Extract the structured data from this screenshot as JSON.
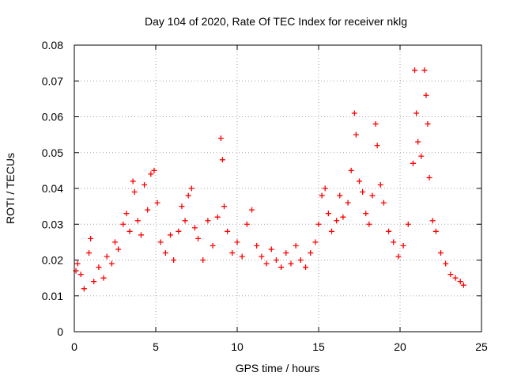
{
  "chart_data": {
    "type": "scatter",
    "title": "Day 104 of 2020, Rate Of TEC Index for receiver nklg",
    "xlabel": "GPS time / hours",
    "ylabel": "ROTI / TECUs",
    "xlim": [
      0,
      25
    ],
    "ylim": [
      0,
      0.08
    ],
    "xticks": [
      0,
      5,
      10,
      15,
      20,
      25
    ],
    "xtick_labels": [
      "0",
      "5",
      "10",
      "15",
      "20",
      "25"
    ],
    "yticks": [
      0,
      0.01,
      0.02,
      0.03,
      0.04,
      0.05,
      0.06,
      0.07,
      0.08
    ],
    "ytick_labels": [
      "0",
      "0.01",
      "0.02",
      "0.03",
      "0.04",
      "0.05",
      "0.06",
      "0.07",
      "0.08"
    ],
    "grid": true,
    "marker": "+",
    "color": "#ff0000",
    "series": [
      {
        "points": [
          [
            0.1,
            0.017
          ],
          [
            0.2,
            0.019
          ],
          [
            0.4,
            0.016
          ],
          [
            0.6,
            0.012
          ],
          [
            0.9,
            0.022
          ],
          [
            1.0,
            0.026
          ],
          [
            1.2,
            0.014
          ],
          [
            1.5,
            0.018
          ],
          [
            1.8,
            0.015
          ],
          [
            2.0,
            0.021
          ],
          [
            2.3,
            0.019
          ],
          [
            2.5,
            0.025
          ],
          [
            2.7,
            0.023
          ],
          [
            3.0,
            0.03
          ],
          [
            3.2,
            0.033
          ],
          [
            3.4,
            0.028
          ],
          [
            3.6,
            0.042
          ],
          [
            3.7,
            0.039
          ],
          [
            3.9,
            0.031
          ],
          [
            4.1,
            0.027
          ],
          [
            4.3,
            0.041
          ],
          [
            4.5,
            0.034
          ],
          [
            4.7,
            0.044
          ],
          [
            4.9,
            0.045
          ],
          [
            5.1,
            0.036
          ],
          [
            5.3,
            0.025
          ],
          [
            5.6,
            0.022
          ],
          [
            5.9,
            0.027
          ],
          [
            6.1,
            0.02
          ],
          [
            6.4,
            0.028
          ],
          [
            6.6,
            0.035
          ],
          [
            6.8,
            0.031
          ],
          [
            7.0,
            0.038
          ],
          [
            7.2,
            0.04
          ],
          [
            7.4,
            0.029
          ],
          [
            7.6,
            0.026
          ],
          [
            7.9,
            0.02
          ],
          [
            8.2,
            0.031
          ],
          [
            8.5,
            0.024
          ],
          [
            8.8,
            0.032
          ],
          [
            9.0,
            0.054
          ],
          [
            9.1,
            0.048
          ],
          [
            9.2,
            0.035
          ],
          [
            9.4,
            0.028
          ],
          [
            9.7,
            0.022
          ],
          [
            10.0,
            0.025
          ],
          [
            10.3,
            0.021
          ],
          [
            10.6,
            0.03
          ],
          [
            10.9,
            0.034
          ],
          [
            11.2,
            0.024
          ],
          [
            11.5,
            0.021
          ],
          [
            11.8,
            0.019
          ],
          [
            12.1,
            0.023
          ],
          [
            12.4,
            0.02
          ],
          [
            12.7,
            0.018
          ],
          [
            13.0,
            0.022
          ],
          [
            13.3,
            0.019
          ],
          [
            13.6,
            0.024
          ],
          [
            13.9,
            0.02
          ],
          [
            14.2,
            0.018
          ],
          [
            14.5,
            0.022
          ],
          [
            14.8,
            0.025
          ],
          [
            15.0,
            0.03
          ],
          [
            15.2,
            0.038
          ],
          [
            15.4,
            0.04
          ],
          [
            15.6,
            0.033
          ],
          [
            15.8,
            0.028
          ],
          [
            16.1,
            0.031
          ],
          [
            16.3,
            0.038
          ],
          [
            16.5,
            0.032
          ],
          [
            16.8,
            0.036
          ],
          [
            17.0,
            0.045
          ],
          [
            17.2,
            0.061
          ],
          [
            17.3,
            0.055
          ],
          [
            17.5,
            0.042
          ],
          [
            17.7,
            0.039
          ],
          [
            17.9,
            0.033
          ],
          [
            18.1,
            0.03
          ],
          [
            18.3,
            0.038
          ],
          [
            18.5,
            0.058
          ],
          [
            18.6,
            0.052
          ],
          [
            18.8,
            0.041
          ],
          [
            19.0,
            0.036
          ],
          [
            19.3,
            0.028
          ],
          [
            19.6,
            0.025
          ],
          [
            19.9,
            0.021
          ],
          [
            20.2,
            0.024
          ],
          [
            20.5,
            0.03
          ],
          [
            20.8,
            0.047
          ],
          [
            20.9,
            0.073
          ],
          [
            21.0,
            0.061
          ],
          [
            21.1,
            0.053
          ],
          [
            21.3,
            0.049
          ],
          [
            21.5,
            0.073
          ],
          [
            21.6,
            0.066
          ],
          [
            21.7,
            0.058
          ],
          [
            21.8,
            0.043
          ],
          [
            22.0,
            0.031
          ],
          [
            22.2,
            0.028
          ],
          [
            22.5,
            0.022
          ],
          [
            22.8,
            0.019
          ],
          [
            23.1,
            0.016
          ],
          [
            23.4,
            0.015
          ],
          [
            23.7,
            0.014
          ],
          [
            23.9,
            0.013
          ]
        ]
      }
    ]
  }
}
